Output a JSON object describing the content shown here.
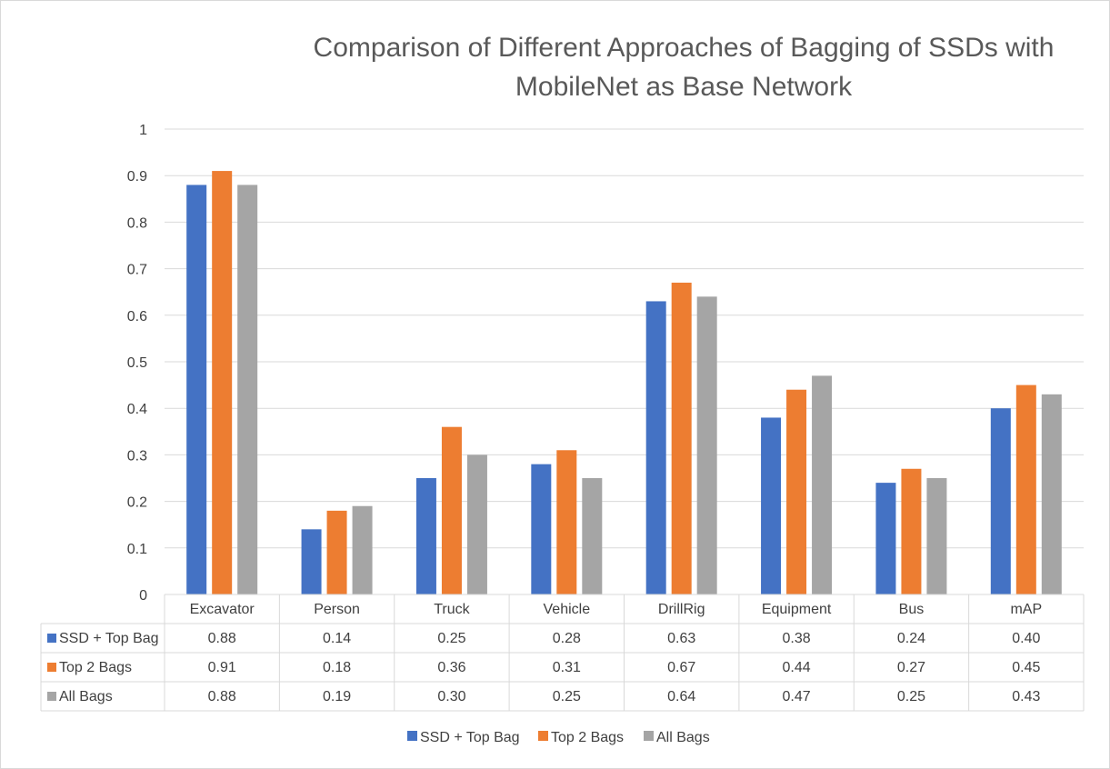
{
  "chart_data": {
    "type": "bar",
    "title_lines": [
      "Comparison of Different Approaches of Bagging of SSDs with",
      "MobileNet as Base Network"
    ],
    "categories": [
      "Excavator",
      "Person",
      "Truck",
      "Vehicle",
      "DrillRig",
      "Equipment",
      "Bus",
      "mAP"
    ],
    "ylim": [
      0,
      1
    ],
    "yticks": [
      "0",
      "0.1",
      "0.2",
      "0.3",
      "0.4",
      "0.5",
      "0.6",
      "0.7",
      "0.8",
      "0.9",
      "1"
    ],
    "grid": true,
    "legend_position": "bottom",
    "data_table": true,
    "series": [
      {
        "name": "SSD + Top Bag",
        "color": "#4472c4",
        "values": [
          0.88,
          0.14,
          0.25,
          0.28,
          0.63,
          0.38,
          0.24,
          0.4
        ],
        "table_labels": [
          "0.88",
          "0.14",
          "0.25",
          "0.28",
          "0.63",
          "0.38",
          "0.24",
          "0.40"
        ]
      },
      {
        "name": "Top 2 Bags",
        "color": "#ed7d31",
        "values": [
          0.91,
          0.18,
          0.36,
          0.31,
          0.67,
          0.44,
          0.27,
          0.45
        ],
        "table_labels": [
          "0.91",
          "0.18",
          "0.36",
          "0.31",
          "0.67",
          "0.44",
          "0.27",
          "0.45"
        ]
      },
      {
        "name": "All Bags",
        "color": "#a5a5a5",
        "values": [
          0.88,
          0.19,
          0.3,
          0.25,
          0.64,
          0.47,
          0.25,
          0.43
        ],
        "table_labels": [
          "0.88",
          "0.19",
          "0.30",
          "0.25",
          "0.64",
          "0.47",
          "0.25",
          "0.43"
        ]
      }
    ]
  }
}
